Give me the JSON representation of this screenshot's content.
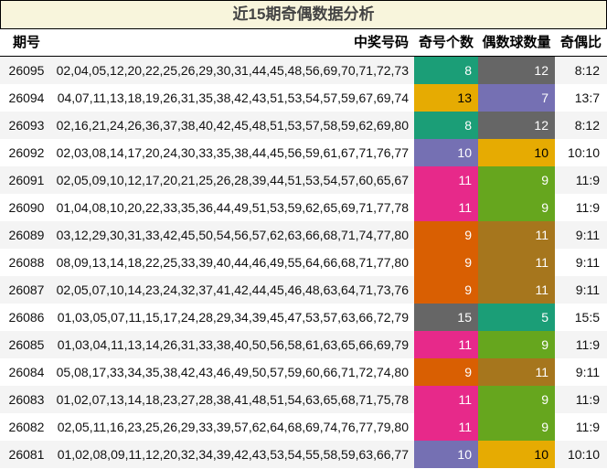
{
  "title": "近15期奇偶数据分析",
  "headers": {
    "issue": "期号",
    "numbers": "中奖号码",
    "odd": "奇号个数",
    "even": "偶数球数量",
    "ratio": "奇偶比"
  },
  "rows": [
    {
      "issue": "26095",
      "numbers": "02,04,05,12,20,22,25,26,29,30,31,44,45,48,56,69,70,71,72,73",
      "odd": "8",
      "even": "12",
      "ratio": "8:12",
      "odd_color": "#1b9e77",
      "even_color": "#666666",
      "odd_text": "#ffffff",
      "even_text": "#ffffff"
    },
    {
      "issue": "26094",
      "numbers": "04,07,11,13,18,19,26,31,35,38,42,43,51,53,54,57,59,67,69,74",
      "odd": "13",
      "even": "7",
      "ratio": "13:7",
      "odd_color": "#e6ab02",
      "even_color": "#7570b3",
      "odd_text": "#000000",
      "even_text": "#ffffff"
    },
    {
      "issue": "26093",
      "numbers": "02,16,21,24,26,36,37,38,40,42,45,48,51,53,57,58,59,62,69,80",
      "odd": "8",
      "even": "12",
      "ratio": "8:12",
      "odd_color": "#1b9e77",
      "even_color": "#666666",
      "odd_text": "#ffffff",
      "even_text": "#ffffff"
    },
    {
      "issue": "26092",
      "numbers": "02,03,08,14,17,20,24,30,33,35,38,44,45,56,59,61,67,71,76,77",
      "odd": "10",
      "even": "10",
      "ratio": "10:10",
      "odd_color": "#7570b3",
      "even_color": "#e6ab02",
      "odd_text": "#ffffff",
      "even_text": "#000000"
    },
    {
      "issue": "26091",
      "numbers": "02,05,09,10,12,17,20,21,25,26,28,39,44,51,53,54,57,60,65,67",
      "odd": "11",
      "even": "9",
      "ratio": "11:9",
      "odd_color": "#e7298a",
      "even_color": "#66a61e",
      "odd_text": "#ffffff",
      "even_text": "#ffffff"
    },
    {
      "issue": "26090",
      "numbers": "01,04,08,10,20,22,33,35,36,44,49,51,53,59,62,65,69,71,77,78",
      "odd": "11",
      "even": "9",
      "ratio": "11:9",
      "odd_color": "#e7298a",
      "even_color": "#66a61e",
      "odd_text": "#ffffff",
      "even_text": "#ffffff"
    },
    {
      "issue": "26089",
      "numbers": "03,12,29,30,31,33,42,45,50,54,56,57,62,63,66,68,71,74,77,80",
      "odd": "9",
      "even": "11",
      "ratio": "9:11",
      "odd_color": "#d95f02",
      "even_color": "#a6761d",
      "odd_text": "#ffffff",
      "even_text": "#ffffff"
    },
    {
      "issue": "26088",
      "numbers": "08,09,13,14,18,22,25,33,39,40,44,46,49,55,64,66,68,71,77,80",
      "odd": "9",
      "even": "11",
      "ratio": "9:11",
      "odd_color": "#d95f02",
      "even_color": "#a6761d",
      "odd_text": "#ffffff",
      "even_text": "#ffffff"
    },
    {
      "issue": "26087",
      "numbers": "02,05,07,10,14,23,24,32,37,41,42,44,45,46,48,63,64,71,73,76",
      "odd": "9",
      "even": "11",
      "ratio": "9:11",
      "odd_color": "#d95f02",
      "even_color": "#a6761d",
      "odd_text": "#ffffff",
      "even_text": "#ffffff"
    },
    {
      "issue": "26086",
      "numbers": "01,03,05,07,11,15,17,24,28,29,34,39,45,47,53,57,63,66,72,79",
      "odd": "15",
      "even": "5",
      "ratio": "15:5",
      "odd_color": "#666666",
      "even_color": "#1b9e77",
      "odd_text": "#ffffff",
      "even_text": "#ffffff"
    },
    {
      "issue": "26085",
      "numbers": "01,03,04,11,13,14,26,31,33,38,40,50,56,58,61,63,65,66,69,79",
      "odd": "11",
      "even": "9",
      "ratio": "11:9",
      "odd_color": "#e7298a",
      "even_color": "#66a61e",
      "odd_text": "#ffffff",
      "even_text": "#ffffff"
    },
    {
      "issue": "26084",
      "numbers": "05,08,17,33,34,35,38,42,43,46,49,50,57,59,60,66,71,72,74,80",
      "odd": "9",
      "even": "11",
      "ratio": "9:11",
      "odd_color": "#d95f02",
      "even_color": "#a6761d",
      "odd_text": "#ffffff",
      "even_text": "#ffffff"
    },
    {
      "issue": "26083",
      "numbers": "01,02,07,13,14,18,23,27,28,38,41,48,51,54,63,65,68,71,75,78",
      "odd": "11",
      "even": "9",
      "ratio": "11:9",
      "odd_color": "#e7298a",
      "even_color": "#66a61e",
      "odd_text": "#ffffff",
      "even_text": "#ffffff"
    },
    {
      "issue": "26082",
      "numbers": "02,05,11,16,23,25,26,29,33,39,57,62,64,68,69,74,76,77,79,80",
      "odd": "11",
      "even": "9",
      "ratio": "11:9",
      "odd_color": "#e7298a",
      "even_color": "#66a61e",
      "odd_text": "#ffffff",
      "even_text": "#ffffff"
    },
    {
      "issue": "26081",
      "numbers": "01,02,08,09,11,12,20,32,34,39,42,43,53,54,55,58,59,63,66,77",
      "odd": "10",
      "even": "10",
      "ratio": "10:10",
      "odd_color": "#7570b3",
      "even_color": "#e6ab02",
      "odd_text": "#ffffff",
      "even_text": "#000000"
    }
  ]
}
